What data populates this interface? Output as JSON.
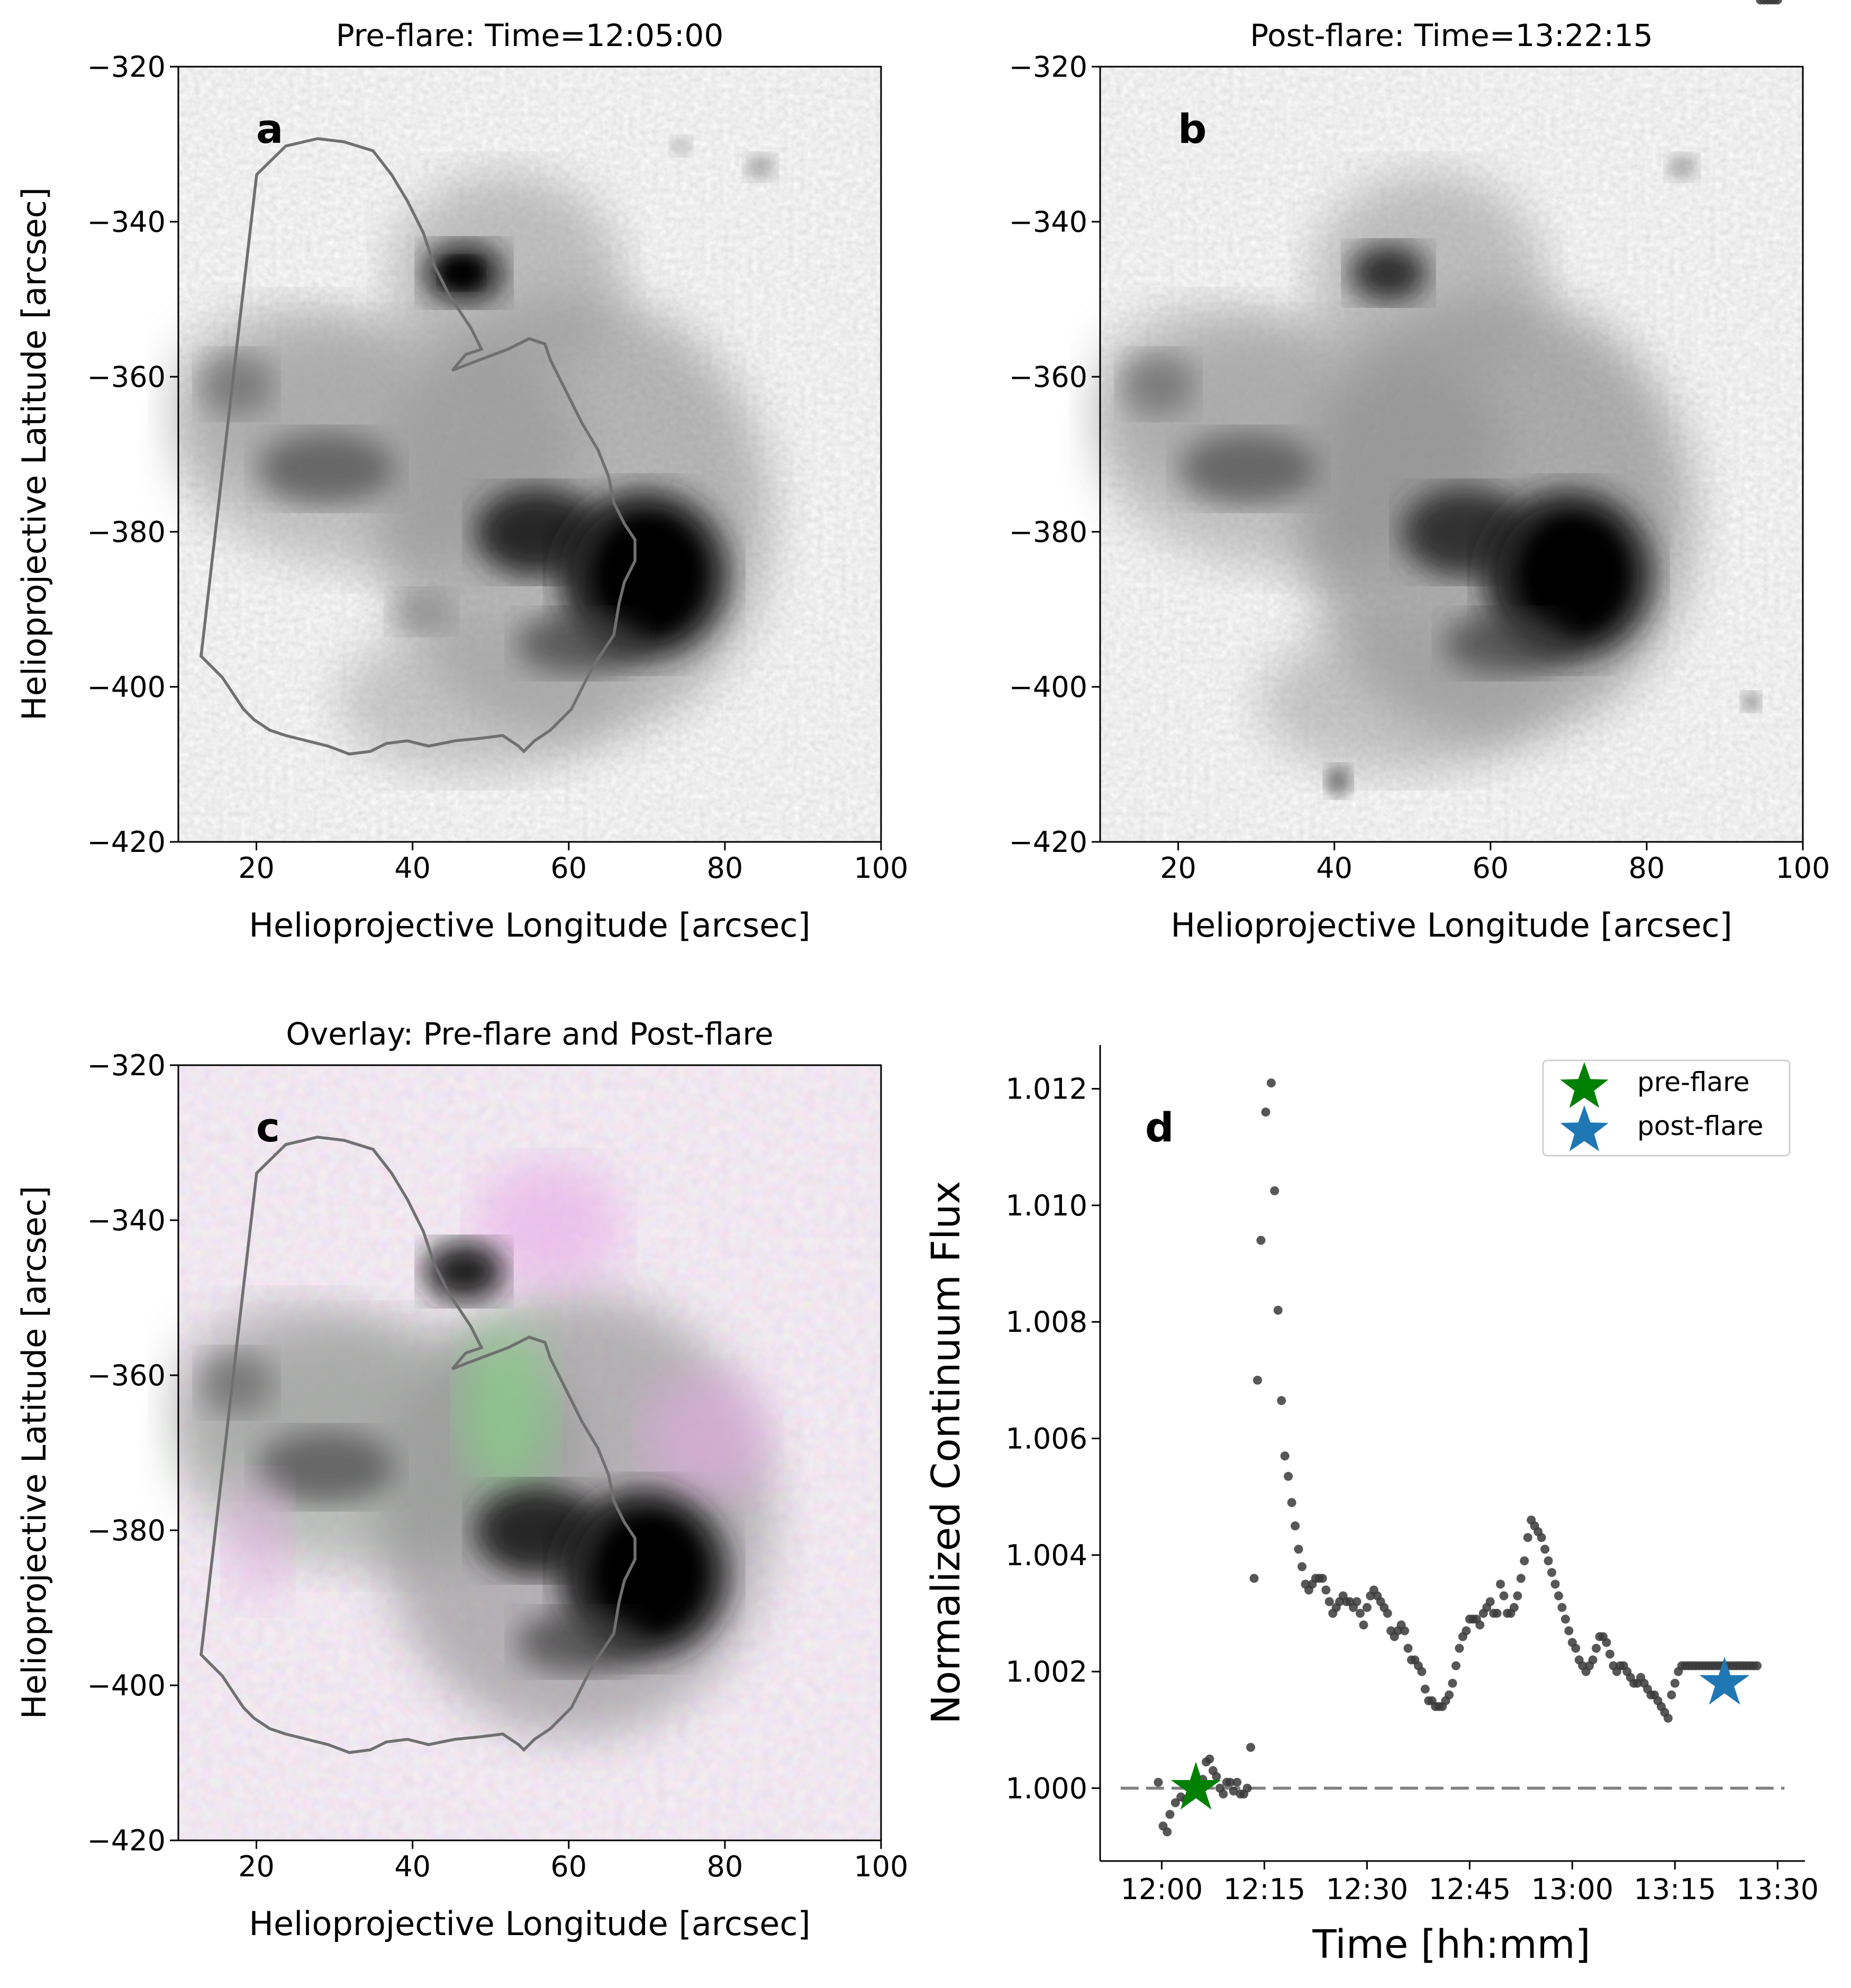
{
  "colors": {
    "contour": "#707070",
    "scatter_points": "#3a3a3a",
    "pre_flare_star": "#008000",
    "post_flare_star": "#1f77b4",
    "reference_line": "#808080",
    "overlay_pre": "#e060e0",
    "overlay_post": "#40e060"
  },
  "chart_data": [
    {
      "type": "heatmap",
      "panel_label": "a",
      "title": "Pre-flare: Time=12:05:00",
      "xlabel": "Helioprojective Longitude [arcsec]",
      "ylabel": "Helioprojective Latitude [arcsec]",
      "xlim": [
        10,
        100
      ],
      "ylim": [
        -420,
        -320
      ],
      "xticks": [
        "20",
        "40",
        "60",
        "80",
        "100"
      ],
      "yticks": [
        "−320",
        "−340",
        "−360",
        "−380",
        "−400",
        "−420"
      ],
      "colormap": "gray",
      "content": "continuum intensity image of sunspot group with region contour"
    },
    {
      "type": "heatmap",
      "panel_label": "b",
      "title": "Post-flare: Time=13:22:15",
      "xlabel": "Helioprojective Longitude [arcsec]",
      "ylabel": "",
      "xlim": [
        10,
        100
      ],
      "ylim": [
        -420,
        -320
      ],
      "xticks": [
        "20",
        "40",
        "60",
        "80",
        "100"
      ],
      "yticks": [
        "−320",
        "−340",
        "−360",
        "−380",
        "−400",
        "−420"
      ],
      "colormap": "gray",
      "content": "continuum intensity image of sunspot group with region contour"
    },
    {
      "type": "heatmap",
      "panel_label": "c",
      "title": "Overlay: Pre-flare and Post-flare",
      "xlabel": "Helioprojective Longitude [arcsec]",
      "ylabel": "Helioprojective Latitude [arcsec]",
      "xlim": [
        10,
        100
      ],
      "ylim": [
        -420,
        -320
      ],
      "xticks": [
        "20",
        "40",
        "60",
        "80",
        "100"
      ],
      "yticks": [
        "−320",
        "−340",
        "−360",
        "−380",
        "−400",
        "−420"
      ],
      "colormap": "magenta-green overlay",
      "content": "pre-flare (magenta) and post-flare (green) overlay with region contour"
    },
    {
      "type": "scatter",
      "panel_label": "d",
      "title": "",
      "xlabel": "Time [hh:mm]",
      "ylabel": "Normalized Continuum Flux",
      "xlim_minutes_after_1200": [
        -9,
        94
      ],
      "ylim": [
        0.99875,
        1.01275
      ],
      "xticks": [
        "12:00",
        "12:15",
        "12:30",
        "12:45",
        "13:00",
        "13:15",
        "13:30"
      ],
      "xtick_minutes": [
        0,
        15,
        30,
        45,
        60,
        75,
        90
      ],
      "yticks": [
        "1.000",
        "1.002",
        "1.004",
        "1.006",
        "1.008",
        "1.010",
        "1.012"
      ],
      "ytick_values": [
        1.0,
        1.002,
        1.004,
        1.006,
        1.008,
        1.01,
        1.012
      ],
      "reference_line": 1.0,
      "legend": [
        {
          "label": "pre-flare",
          "color": "#008000"
        },
        {
          "label": "post-flare",
          "color": "#1f77b4"
        }
      ],
      "legend_position": "top-right",
      "markers": [
        {
          "name": "pre-flare",
          "time_min": 5.0,
          "value": 1.0
        },
        {
          "name": "post-flare",
          "time_min": 82.25,
          "value": 1.0018
        }
      ],
      "t_min": [
        -0.5,
        0.2,
        0.8,
        1.2,
        2.0,
        2.8,
        3.5,
        4.2,
        4.8,
        5.5,
        6.0,
        6.5,
        7.0,
        7.5,
        8.0,
        8.5,
        9.0,
        9.5,
        10.0,
        10.5,
        11.0,
        11.5,
        12.0,
        12.5,
        13.0,
        13.5,
        14.0,
        14.5,
        15.2,
        16.0,
        16.5,
        17.0,
        17.5,
        18.0,
        18.5,
        19.0,
        19.5,
        20.0,
        20.5,
        21.0,
        21.5,
        22.0,
        22.5,
        23.0,
        23.5,
        24.0,
        24.5,
        25.0,
        25.5,
        26.0,
        26.5,
        27.0,
        27.5,
        28.0,
        28.5,
        29.0,
        29.5,
        30.0,
        30.5,
        31.0,
        31.5,
        32.0,
        32.5,
        33.0,
        33.5,
        34.0,
        34.5,
        35.0,
        35.5,
        36.0,
        36.5,
        37.0,
        37.5,
        38.0,
        38.5,
        39.0,
        39.5,
        40.0,
        40.5,
        41.0,
        41.5,
        42.0,
        42.5,
        43.0,
        43.5,
        44.0,
        44.5,
        45.0,
        45.5,
        46.0,
        46.5,
        47.0,
        47.5,
        48.0,
        48.5,
        49.0,
        49.5,
        50.0,
        50.5,
        51.0,
        51.5,
        52.0,
        52.5,
        53.0,
        53.5,
        54.0,
        54.5,
        55.0,
        55.5,
        56.0,
        56.5,
        57.0,
        57.5,
        58.0,
        58.5,
        59.0,
        59.5,
        60.0,
        60.5,
        61.0,
        61.5,
        62.0,
        62.5,
        63.0,
        63.5,
        64.0,
        64.5,
        65.0,
        65.5,
        66.0,
        66.5,
        67.0,
        67.5,
        68.0,
        68.5,
        69.0,
        69.5,
        70.0,
        70.5,
        71.0,
        71.5,
        72.0,
        72.5,
        73.0,
        73.5,
        74.0,
        74.5,
        75.0,
        75.5,
        76.0,
        76.5,
        77.0,
        77.5,
        78.0,
        78.5,
        79.0,
        79.5,
        80.0,
        80.5,
        81.0,
        81.5,
        82.0,
        82.5,
        83.0,
        83.5,
        84.0,
        84.5,
        85.0,
        85.5,
        86.0,
        86.5,
        87.0,
        87.5,
        88.0,
        88.5,
        89.0,
        89.5,
        90.0
      ],
      "flux": [
        1.0001,
        0.99935,
        0.99925,
        0.99955,
        0.99975,
        0.99985,
        0.9998,
        0.99985,
        0.9999,
        1.00005,
        1.00015,
        1.00045,
        1.0005,
        1.0003,
        1.0002,
        1.0,
        0.9999,
        1.0001,
        1.0001,
        0.99995,
        1.0001,
        0.9999,
        0.9999,
        1.0,
        1.0007,
        1.0036,
        1.007,
        1.0094,
        1.0116,
        1.0121,
        1.01025,
        1.0082,
        1.00665,
        1.0057,
        1.00535,
        1.0049,
        1.0045,
        1.0041,
        1.0038,
        1.0035,
        1.0034,
        1.0035,
        1.0036,
        1.0036,
        1.0036,
        1.0034,
        1.0032,
        1.003,
        1.0031,
        1.0032,
        1.0033,
        1.0032,
        1.0032,
        1.0031,
        1.0032,
        1.003,
        1.0028,
        1.0031,
        1.0033,
        1.0034,
        1.0033,
        1.0032,
        1.0031,
        1.003,
        1.0027,
        1.0026,
        1.0027,
        1.0028,
        1.0027,
        1.0024,
        1.0022,
        1.0022,
        1.0021,
        1.002,
        1.0017,
        1.0015,
        1.0015,
        1.0014,
        1.0014,
        1.0014,
        1.0015,
        1.0016,
        1.0018,
        1.0021,
        1.0024,
        1.0026,
        1.0027,
        1.0029,
        1.0029,
        1.0029,
        1.0028,
        1.003,
        1.0031,
        1.0032,
        1.003,
        1.003,
        1.0035,
        1.0033,
        1.003,
        1.003,
        1.0031,
        1.0033,
        1.0036,
        1.0039,
        1.0043,
        1.0046,
        1.0045,
        1.0044,
        1.0043,
        1.0041,
        1.0039,
        1.0037,
        1.0035,
        1.0033,
        1.0031,
        1.0029,
        1.0027,
        1.0025,
        1.0024,
        1.0022,
        1.0021,
        1.002,
        1.0021,
        1.0022,
        1.0024,
        1.0026,
        1.0026,
        1.0025,
        1.0023,
        1.0021,
        1.002,
        1.0021,
        1.0021,
        1.002,
        1.0019,
        1.0018,
        1.0018,
        1.0019,
        1.0018,
        1.0017,
        1.0016,
        1.0016,
        1.0015,
        1.0014,
        1.0013,
        1.0012,
        1.0016,
        1.0018,
        1.002,
        1.0021,
        1.0021,
        1.0021,
        1.0021,
        1.0021,
        1.0021,
        1.0021,
        1.0021,
        1.0021,
        1.0021,
        1.0021,
        1.0021,
        1.0021,
        1.0021,
        1.0021,
        1.0021,
        1.0021,
        1.0021,
        1.0021,
        1.0021,
        1.0021,
        1.0021,
        1.0021
      ]
    }
  ]
}
